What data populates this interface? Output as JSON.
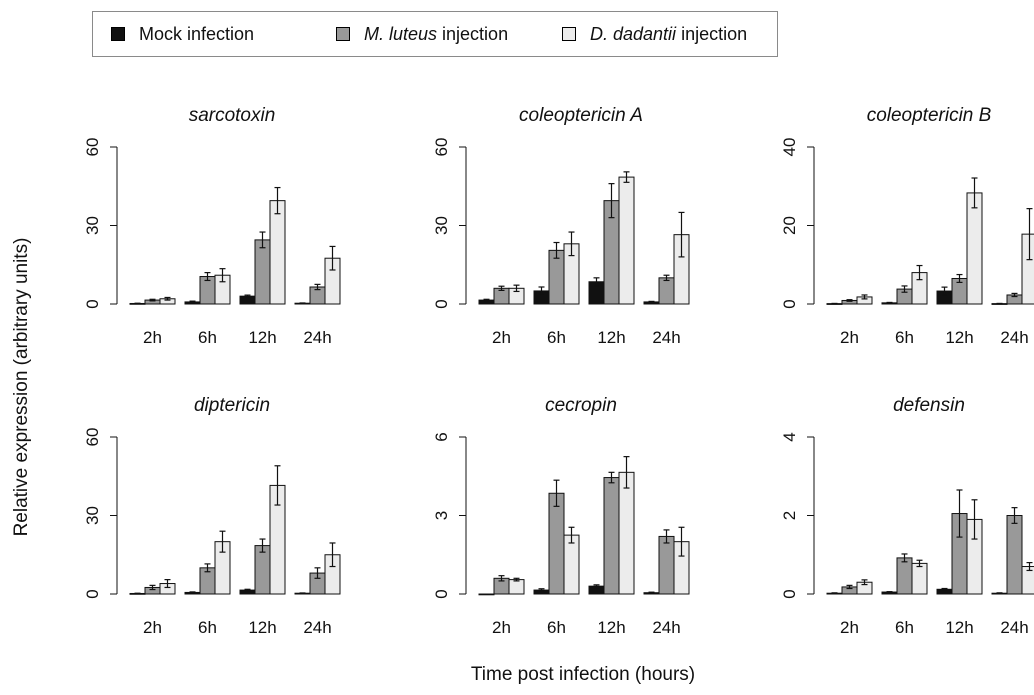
{
  "legend": {
    "items": [
      {
        "label_italic": "",
        "label": "Mock infection",
        "color": "#111111"
      },
      {
        "label_italic": "M. luteus",
        "label": " injection",
        "color": "#999999"
      },
      {
        "label_italic": "D. dadantii",
        "label": " injection",
        "color": "#ececec"
      }
    ]
  },
  "axis_titles": {
    "y": "Relative expression (arbitrary units)",
    "x": "Time post infection (hours)"
  },
  "chart_data": [
    {
      "type": "bar",
      "title": "sarcotoxin",
      "categories": [
        "2h",
        "6h",
        "12h",
        "24h"
      ],
      "yticks": [
        0,
        30,
        60
      ],
      "ylim": [
        0,
        60
      ],
      "series": [
        {
          "name": "Mock infection",
          "values": [
            0.2,
            0.8,
            3.0,
            0.3
          ],
          "errors": [
            0.1,
            0.3,
            0.4,
            0.1
          ]
        },
        {
          "name": "M. luteus injection",
          "values": [
            1.5,
            10.5,
            24.5,
            6.5
          ],
          "errors": [
            0.3,
            1.5,
            3.0,
            1.0
          ]
        },
        {
          "name": "D. dadantii injection",
          "values": [
            2.0,
            11.0,
            39.5,
            17.5
          ],
          "errors": [
            0.5,
            2.5,
            5.0,
            4.5
          ]
        }
      ]
    },
    {
      "type": "bar",
      "title": "coleoptericin A",
      "categories": [
        "2h",
        "6h",
        "12h",
        "24h"
      ],
      "yticks": [
        0,
        30,
        60
      ],
      "ylim": [
        0,
        60
      ],
      "series": [
        {
          "name": "Mock infection",
          "values": [
            1.5,
            5.0,
            8.5,
            0.8
          ],
          "errors": [
            0.3,
            1.5,
            1.5,
            0.2
          ]
        },
        {
          "name": "M. luteus injection",
          "values": [
            6.0,
            20.5,
            39.5,
            10.0
          ],
          "errors": [
            0.8,
            3.0,
            6.5,
            1.0
          ]
        },
        {
          "name": "D. dadantii injection",
          "values": [
            6.0,
            23.0,
            48.5,
            26.5
          ],
          "errors": [
            1.2,
            4.5,
            2.0,
            8.5
          ]
        }
      ]
    },
    {
      "type": "bar",
      "title": "coleoptericin B",
      "categories": [
        "2h",
        "6h",
        "12h",
        "24h"
      ],
      "yticks": [
        0,
        20,
        40
      ],
      "ylim": [
        0,
        40
      ],
      "series": [
        {
          "name": "Mock infection",
          "values": [
            0.1,
            0.3,
            3.3,
            0.1
          ],
          "errors": [
            0.05,
            0.1,
            1.0,
            0.05
          ]
        },
        {
          "name": "M. luteus injection",
          "values": [
            0.9,
            3.8,
            6.5,
            2.3
          ],
          "errors": [
            0.2,
            0.8,
            1.0,
            0.4
          ]
        },
        {
          "name": "D. dadantii injection",
          "values": [
            1.8,
            8.0,
            28.3,
            17.8
          ],
          "errors": [
            0.5,
            1.8,
            3.8,
            6.5
          ]
        }
      ]
    },
    {
      "type": "bar",
      "title": "diptericin",
      "categories": [
        "2h",
        "6h",
        "12h",
        "24h"
      ],
      "yticks": [
        0,
        30,
        60
      ],
      "ylim": [
        0,
        60
      ],
      "series": [
        {
          "name": "Mock infection",
          "values": [
            0.2,
            0.6,
            1.5,
            0.3
          ],
          "errors": [
            0.1,
            0.2,
            0.3,
            0.1
          ]
        },
        {
          "name": "M. luteus injection",
          "values": [
            2.5,
            10.0,
            18.5,
            8.0
          ],
          "errors": [
            0.8,
            1.5,
            2.5,
            2.0
          ]
        },
        {
          "name": "D. dadantii injection",
          "values": [
            4.0,
            20.0,
            41.5,
            15.0
          ],
          "errors": [
            1.5,
            4.0,
            7.5,
            4.5
          ]
        }
      ]
    },
    {
      "type": "bar",
      "title": "cecropin",
      "categories": [
        "2h",
        "6h",
        "12h",
        "24h"
      ],
      "yticks": [
        0,
        3,
        6
      ],
      "ylim": [
        0,
        6
      ],
      "series": [
        {
          "name": "Mock infection",
          "values": [
            0.0,
            0.15,
            0.3,
            0.05
          ],
          "errors": [
            0.0,
            0.05,
            0.05,
            0.02
          ]
        },
        {
          "name": "M. luteus injection",
          "values": [
            0.6,
            3.85,
            4.45,
            2.2
          ],
          "errors": [
            0.1,
            0.5,
            0.2,
            0.25
          ]
        },
        {
          "name": "D. dadantii injection",
          "values": [
            0.55,
            2.25,
            4.65,
            2.0
          ],
          "errors": [
            0.05,
            0.3,
            0.6,
            0.55
          ]
        }
      ]
    },
    {
      "type": "bar",
      "title": "defensin",
      "categories": [
        "2h",
        "6h",
        "12h",
        "24h"
      ],
      "yticks": [
        0,
        2,
        4
      ],
      "ylim": [
        0,
        4
      ],
      "series": [
        {
          "name": "Mock infection",
          "values": [
            0.02,
            0.05,
            0.12,
            0.02
          ],
          "errors": [
            0.01,
            0.01,
            0.02,
            0.01
          ]
        },
        {
          "name": "M. luteus injection",
          "values": [
            0.18,
            0.92,
            2.05,
            2.0
          ],
          "errors": [
            0.04,
            0.1,
            0.6,
            0.2
          ]
        },
        {
          "name": "D. dadantii injection",
          "values": [
            0.3,
            0.78,
            1.9,
            0.7
          ],
          "errors": [
            0.06,
            0.08,
            0.5,
            0.1
          ]
        }
      ]
    }
  ]
}
